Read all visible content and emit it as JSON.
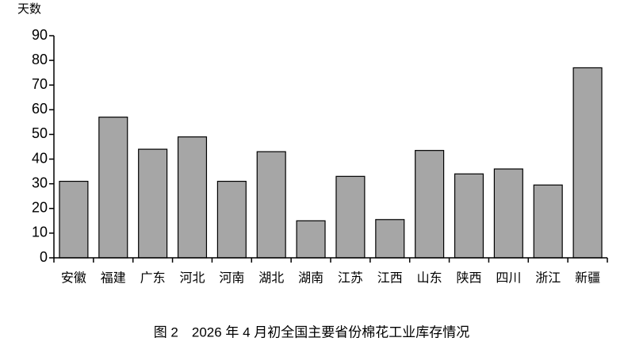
{
  "chart_data": {
    "type": "bar",
    "title": "图 2　2026 年 4 月初全国主要省份棉花工业库存情况",
    "y_label": "天数",
    "categories": [
      "安徽",
      "福建",
      "广东",
      "河北",
      "河南",
      "湖北",
      "湖南",
      "江苏",
      "江西",
      "山东",
      "陕西",
      "四川",
      "浙江",
      "新疆"
    ],
    "values": [
      31,
      57,
      44,
      49,
      31,
      43,
      15,
      33,
      15.5,
      43.5,
      34,
      36,
      29.5,
      77
    ],
    "color": "#a6a6a6",
    "ylim": [
      0,
      90
    ],
    "yticks": [
      0,
      10,
      20,
      30,
      40,
      50,
      60,
      70,
      80,
      90
    ],
    "grid": false
  }
}
